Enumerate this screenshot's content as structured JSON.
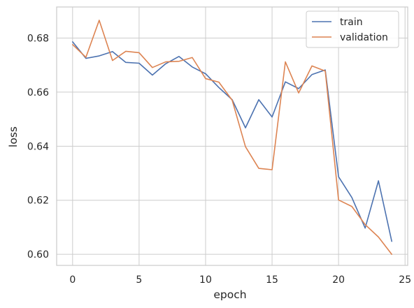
{
  "chart_data": {
    "type": "line",
    "xlabel": "epoch",
    "ylabel": "loss",
    "xlim": [
      -1.2,
      25.2
    ],
    "ylim": [
      0.5959,
      0.6915
    ],
    "xticks": [
      0,
      5,
      10,
      15,
      20,
      25
    ],
    "yticks": [
      0.6,
      0.62,
      0.64,
      0.66,
      0.68
    ],
    "grid": true,
    "legend_position": "top-right",
    "series": [
      {
        "name": "train",
        "color": "#4c72b0",
        "x": [
          0,
          1,
          2,
          3,
          4,
          5,
          6,
          7,
          8,
          9,
          10,
          11,
          12,
          13,
          14,
          15,
          16,
          17,
          18,
          19,
          20,
          21,
          22,
          23,
          24
        ],
        "values": [
          0.6786,
          0.6725,
          0.6734,
          0.675,
          0.671,
          0.6707,
          0.6663,
          0.6705,
          0.6732,
          0.6693,
          0.6668,
          0.6617,
          0.6572,
          0.6468,
          0.6572,
          0.6508,
          0.6638,
          0.6613,
          0.6665,
          0.6682,
          0.6287,
          0.621,
          0.6097,
          0.6272,
          0.6048
        ]
      },
      {
        "name": "validation",
        "color": "#dd8452",
        "x": [
          0,
          1,
          2,
          3,
          4,
          5,
          6,
          7,
          8,
          9,
          10,
          11,
          12,
          13,
          14,
          15,
          16,
          17,
          18,
          19,
          20,
          21,
          22,
          23,
          24
        ],
        "values": [
          0.6776,
          0.6729,
          0.6866,
          0.6717,
          0.6751,
          0.6746,
          0.6691,
          0.6712,
          0.6714,
          0.6728,
          0.665,
          0.6637,
          0.657,
          0.6398,
          0.6318,
          0.6313,
          0.6712,
          0.6597,
          0.6697,
          0.6678,
          0.6201,
          0.6177,
          0.611,
          0.6064,
          0.6
        ]
      }
    ]
  }
}
